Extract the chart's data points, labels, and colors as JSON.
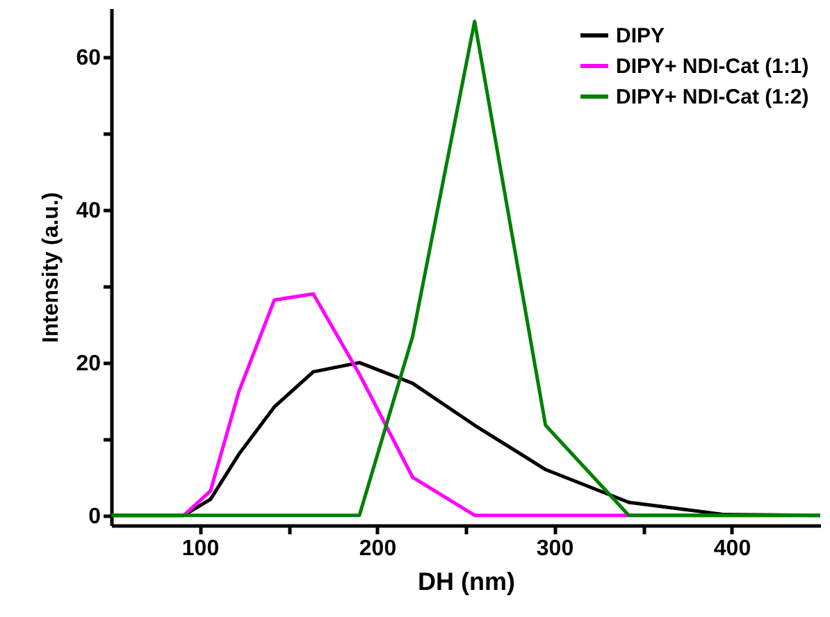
{
  "chart_data": {
    "type": "line",
    "xlabel": "DH (nm)",
    "ylabel": "Intensity (a.u.)",
    "xlim": [
      50,
      450
    ],
    "ylim": [
      -1.3,
      66.4
    ],
    "xticks": [
      100,
      {
        "value": 150,
        "label": null
      },
      200,
      {
        "value": 250,
        "label": null
      },
      300,
      {
        "value": 350,
        "label": null
      },
      400
    ],
    "yticks": [
      0,
      {
        "value": 10,
        "label": null
      },
      20,
      {
        "value": 30,
        "label": null
      },
      40,
      {
        "value": 50,
        "label": null
      },
      60
    ],
    "grid": false,
    "legend": "top right",
    "marker": "none",
    "line_style": "solid",
    "x": [
      50,
      91,
      106,
      122,
      142,
      164,
      190,
      220,
      255,
      295,
      342,
      396,
      450
    ],
    "series": [
      {
        "name": "DIPY",
        "color": "#000000",
        "values": [
          0,
          0,
          2.1,
          8,
          14.2,
          18.8,
          20.0,
          17.3,
          11.8,
          6.0,
          1.7,
          0.1,
          0
        ]
      },
      {
        "name": "DIPY+ NDI-Cat (1:1)",
        "color": "#ff00ff",
        "values": [
          0,
          0,
          3.2,
          16.2,
          28.2,
          29.0,
          18.5,
          5.0,
          0,
          0,
          0,
          0,
          0
        ]
      },
      {
        "name": "DIPY+ NDI-Cat (1:2)",
        "color": "#008000",
        "values": [
          0,
          0,
          0,
          0,
          0,
          0,
          0,
          23.4,
          64.7,
          11.8,
          0,
          0,
          0
        ]
      }
    ]
  }
}
